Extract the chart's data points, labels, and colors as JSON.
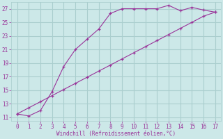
{
  "xlabel": "Windchill (Refroidissement éolien,°C)",
  "background_color": "#cce8e8",
  "grid_color": "#aacece",
  "line_color": "#993399",
  "xlim": [
    -0.5,
    17.5
  ],
  "ylim": [
    10.5,
    28.0
  ],
  "xticks": [
    0,
    1,
    2,
    3,
    4,
    5,
    6,
    7,
    8,
    9,
    10,
    11,
    12,
    13,
    14,
    15,
    16,
    17
  ],
  "yticks": [
    11,
    13,
    15,
    17,
    19,
    21,
    23,
    25,
    27
  ],
  "line1_x": [
    0,
    1,
    2,
    3,
    4,
    5,
    6,
    7,
    8,
    9,
    10,
    11,
    12,
    13,
    14,
    15,
    16,
    17
  ],
  "line1_y": [
    11.5,
    11.2,
    12.0,
    14.8,
    18.5,
    21.0,
    22.5,
    24.0,
    26.3,
    27.0,
    27.0,
    27.0,
    27.0,
    27.5,
    26.7,
    27.2,
    26.8,
    26.5
  ],
  "line2_x": [
    0,
    1,
    2,
    3,
    4,
    5,
    6,
    7,
    8,
    9,
    10,
    11,
    12,
    13,
    14,
    15,
    16,
    17
  ],
  "line2_y": [
    11.5,
    12.4,
    13.3,
    14.2,
    15.1,
    16.0,
    16.9,
    17.8,
    18.7,
    19.6,
    20.5,
    21.4,
    22.3,
    23.2,
    24.1,
    25.0,
    25.9,
    26.5
  ]
}
